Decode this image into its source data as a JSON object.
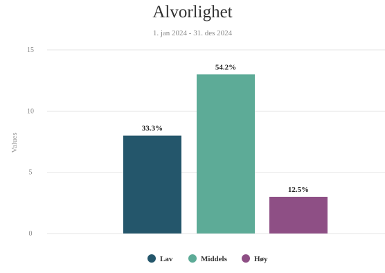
{
  "chart_data": {
    "type": "bar",
    "title": "Alvorlighet",
    "subtitle": "1. jan 2024 - 31. des 2024",
    "ylabel": "Values",
    "ylim": [
      0,
      15
    ],
    "yticks": [
      0,
      5,
      10,
      15
    ],
    "grid": true,
    "legend_position": "bottom",
    "categories": [
      "Lav",
      "Middels",
      "Høy"
    ],
    "values": [
      8,
      13,
      3
    ],
    "data_labels": [
      "33.3%",
      "54.2%",
      "12.5%"
    ],
    "colors": [
      "#24566b",
      "#5dab97",
      "#8e4f85"
    ]
  }
}
